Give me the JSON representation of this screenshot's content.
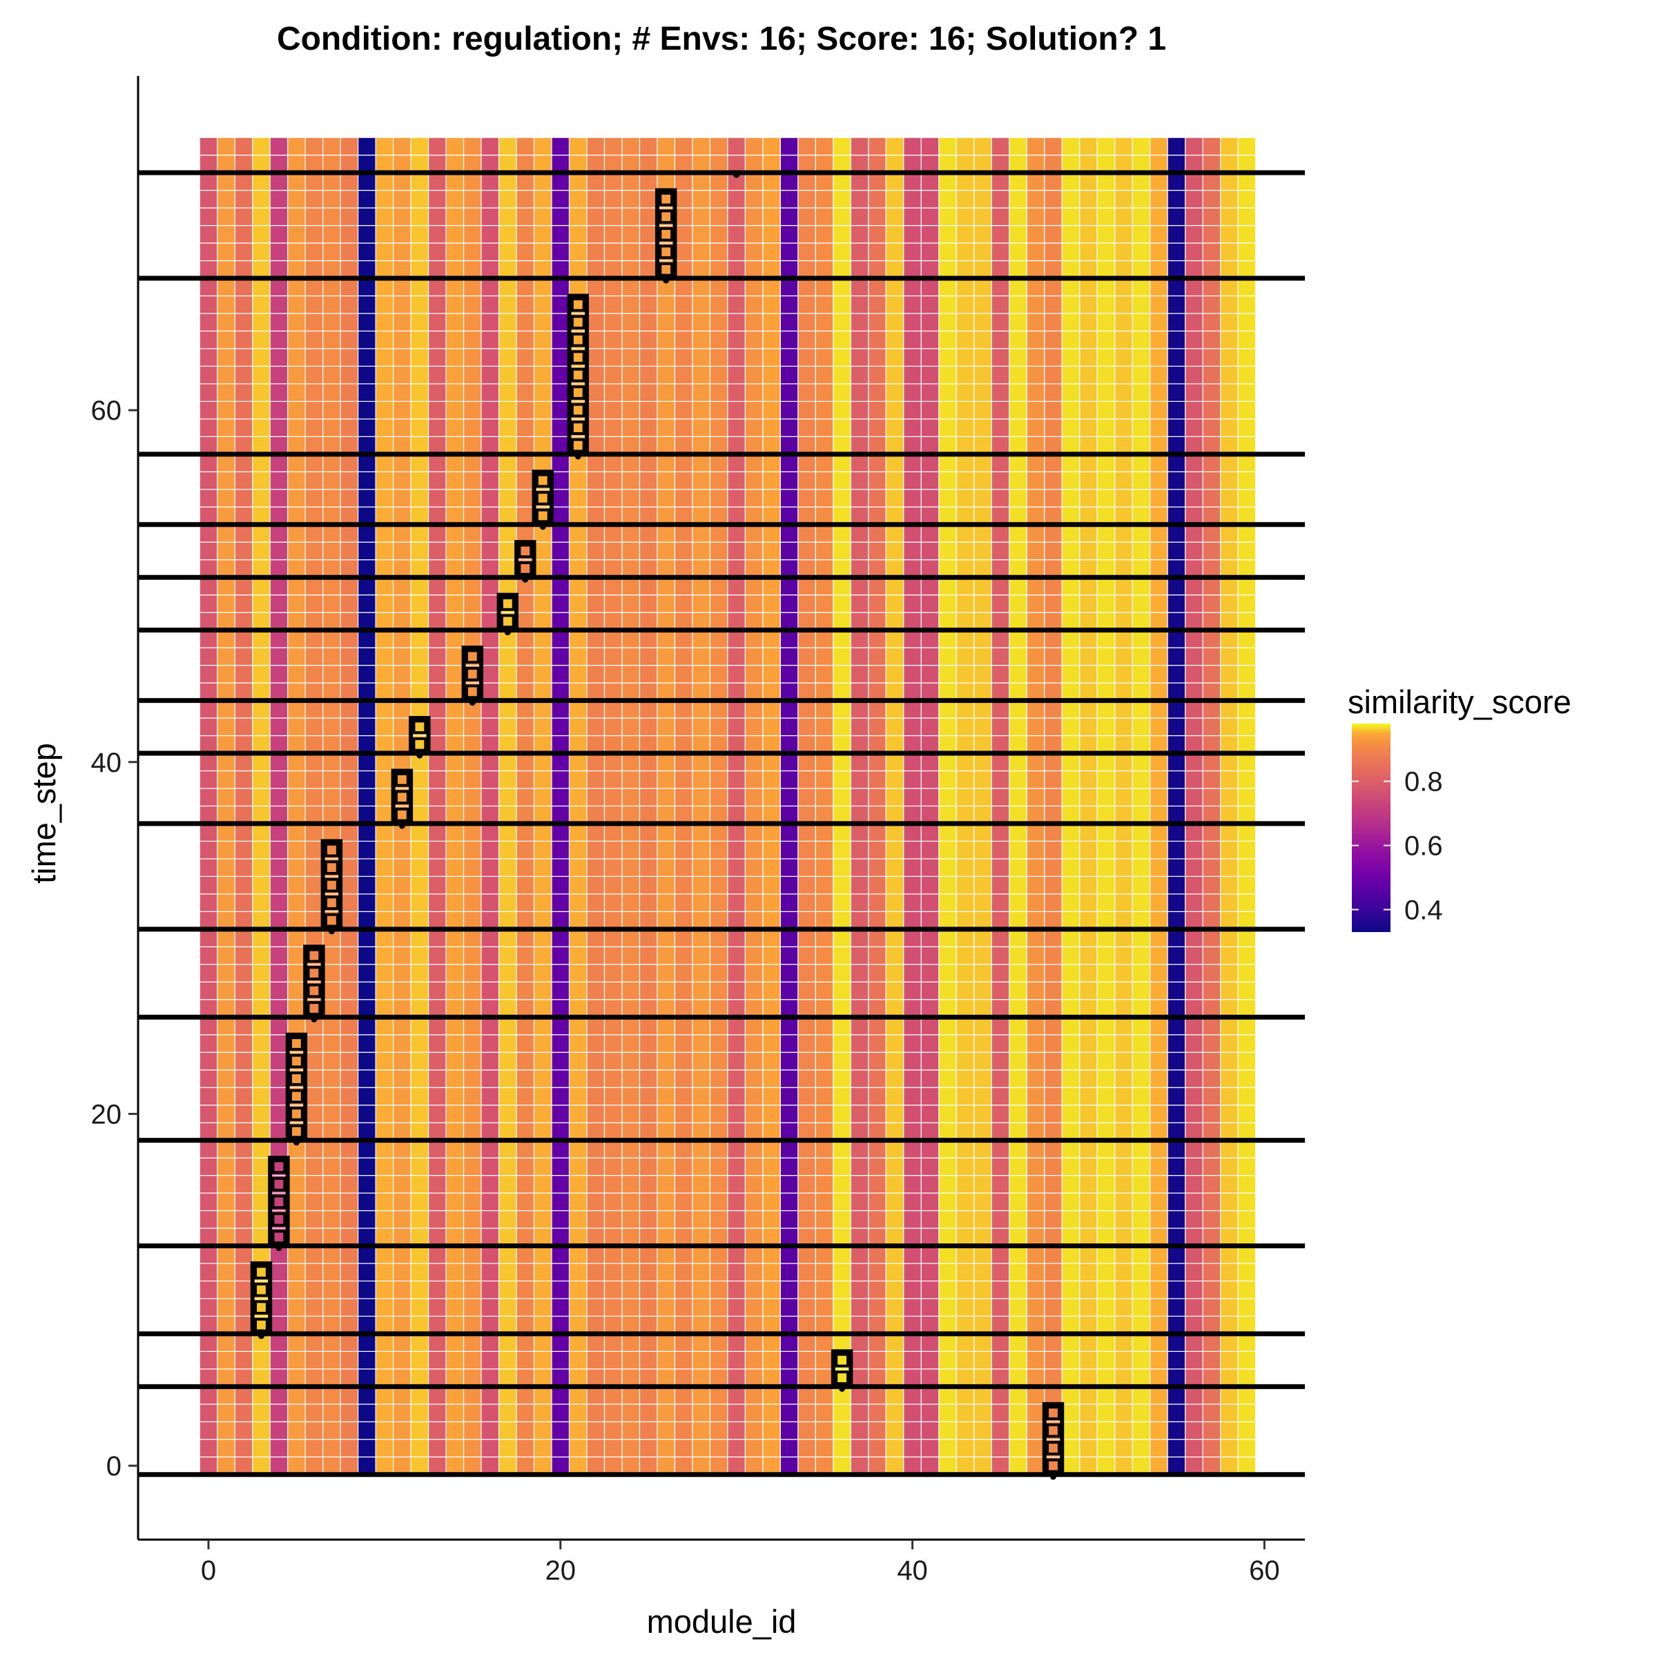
{
  "chart_data": {
    "type": "heatmap",
    "title": "Condition: regulation; # Envs: 16; Score: 16; Solution? 1",
    "xlabel": "module_id",
    "ylabel": "time_step",
    "xlim": [
      -4,
      62.3
    ],
    "ylim": [
      -4.2,
      79
    ],
    "x_ticks": [
      0,
      20,
      40,
      60
    ],
    "y_ticks": [
      0,
      20,
      40,
      60
    ],
    "modules": [
      0,
      59
    ],
    "time_steps": [
      0,
      75
    ],
    "column_scores": [
      0.78,
      0.93,
      0.85,
      0.96,
      0.72,
      0.93,
      0.9,
      0.91,
      0.88,
      0.32,
      0.95,
      0.93,
      0.96,
      0.8,
      0.94,
      0.92,
      0.77,
      0.96,
      0.9,
      0.95,
      0.48,
      0.95,
      0.89,
      0.9,
      0.91,
      0.89,
      0.93,
      0.9,
      0.93,
      0.91,
      0.8,
      0.92,
      0.94,
      0.46,
      0.9,
      0.91,
      0.97,
      0.8,
      0.86,
      0.96,
      0.76,
      0.76,
      0.97,
      0.96,
      0.96,
      0.8,
      0.97,
      0.92,
      0.9,
      0.97,
      0.96,
      0.97,
      0.96,
      0.97,
      0.95,
      0.34,
      0.78,
      0.85,
      0.96,
      0.97
    ],
    "environment_boundaries": [
      -0.5,
      4.5,
      7.5,
      12.5,
      18.5,
      25.5,
      30.5,
      36.5,
      40.5,
      43.5,
      47.5,
      50.5,
      53.5,
      57.5,
      67.5,
      73.5
    ],
    "active_runs": [
      {
        "module": 48,
        "start": 0,
        "end": 3
      },
      {
        "module": 36,
        "start": 5,
        "end": 6
      },
      {
        "module": 3,
        "start": 8,
        "end": 11
      },
      {
        "module": 4,
        "start": 13,
        "end": 17
      },
      {
        "module": 5,
        "start": 19,
        "end": 24
      },
      {
        "module": 6,
        "start": 26,
        "end": 29
      },
      {
        "module": 7,
        "start": 31,
        "end": 35
      },
      {
        "module": 11,
        "start": 37,
        "end": 39
      },
      {
        "module": 12,
        "start": 41,
        "end": 42
      },
      {
        "module": 15,
        "start": 44,
        "end": 46
      },
      {
        "module": 17,
        "start": 48,
        "end": 49
      },
      {
        "module": 18,
        "start": 51,
        "end": 52
      },
      {
        "module": 19,
        "start": 54,
        "end": 56
      },
      {
        "module": 21,
        "start": 58,
        "end": 66
      },
      {
        "module": 26,
        "start": 68,
        "end": 72
      },
      {
        "module": 30,
        "start": 74,
        "end": 74
      }
    ],
    "colorscale": "plasma",
    "colorbar": {
      "title": "similarity_score",
      "min": 0.33,
      "max": 0.98,
      "ticks": [
        0.4,
        0.6,
        0.8
      ]
    },
    "legend_position": "right"
  }
}
